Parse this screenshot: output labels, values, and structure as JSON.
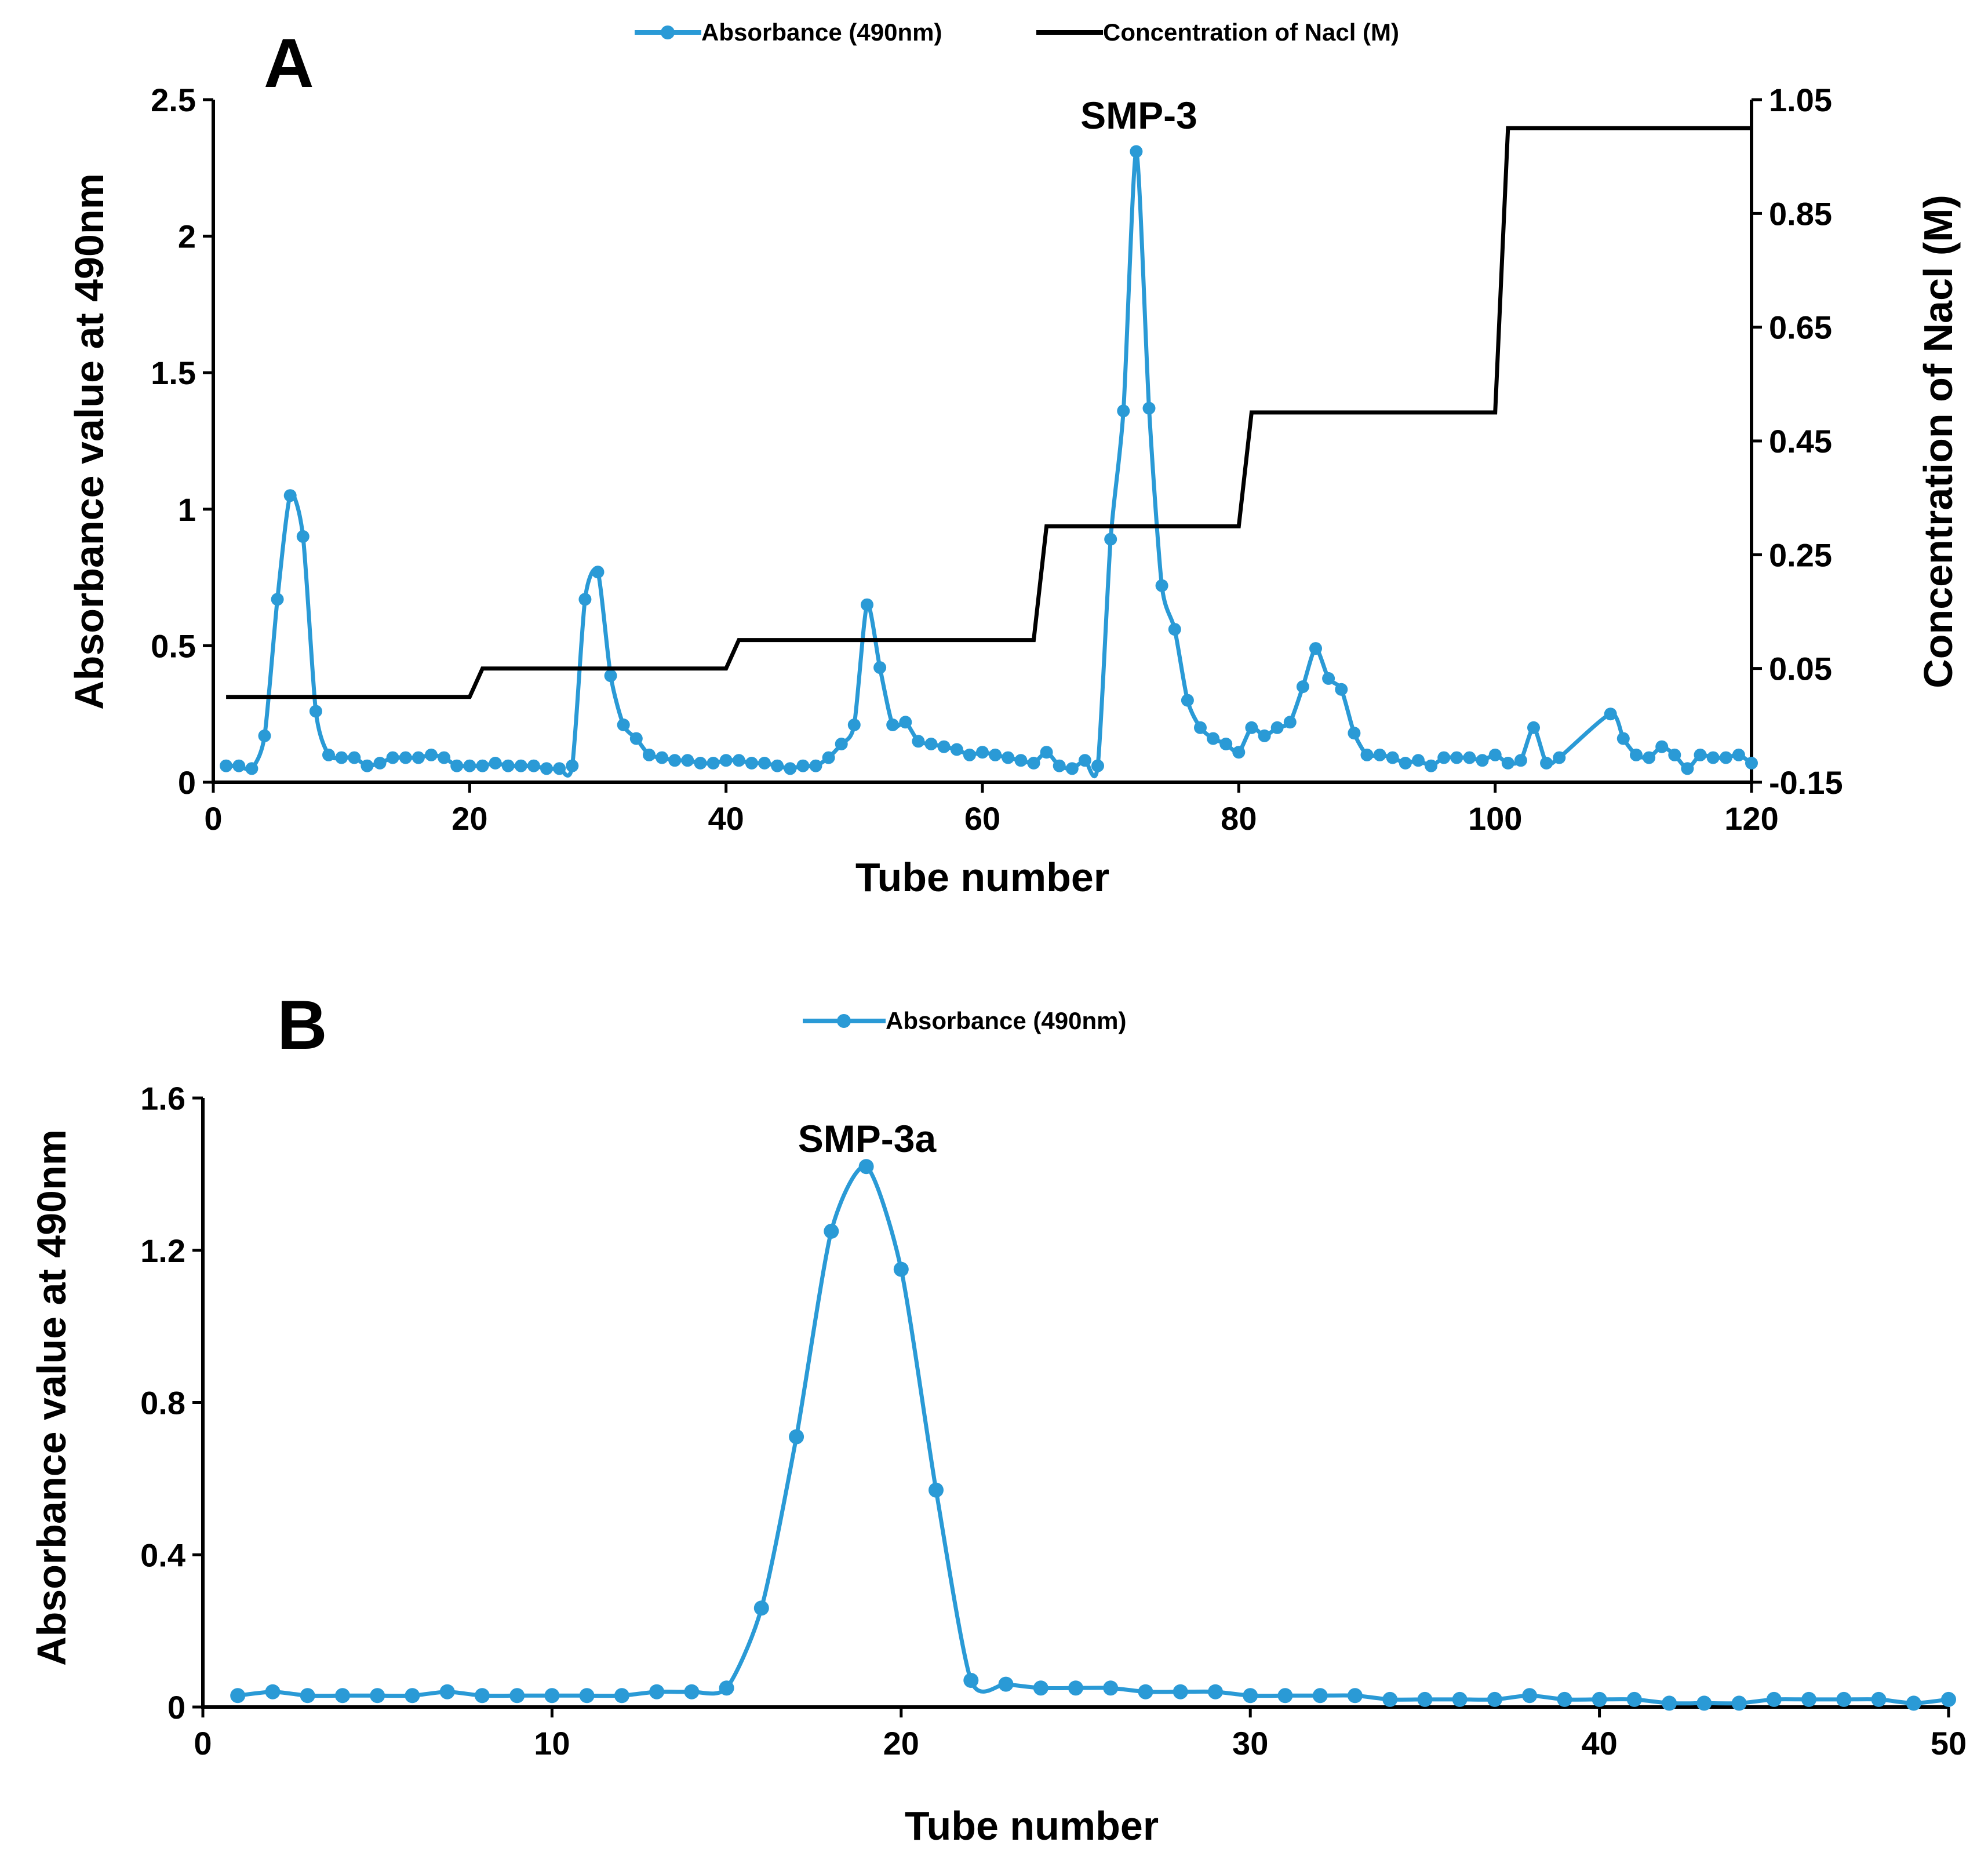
{
  "colors": {
    "absorbance": "#2a9ad6",
    "nacl": "#000000",
    "axis": "#000000"
  },
  "chart_data": [
    {
      "panel": "A",
      "type": "line",
      "xlabel": "Tube number",
      "ylabel": "Absorbance value at 490nm",
      "y2label": "Concentration of Nacl (M)",
      "xlim": [
        0,
        120
      ],
      "ylim": [
        0,
        2.5
      ],
      "y2lim": [
        -0.15,
        1.05
      ],
      "xticks": [
        "0",
        "20",
        "40",
        "60",
        "80",
        "100",
        "120"
      ],
      "yticks": [
        "0",
        "0.5",
        "1",
        "1.5",
        "2",
        "2.5"
      ],
      "y2ticks": [
        "-0.15",
        "0.05",
        "0.25",
        "0.45",
        "0.65",
        "0.85",
        "1.05"
      ],
      "legend": [
        "Absorbance (490nm)",
        "Concentration of Nacl (M)"
      ],
      "annotation": "SMP-3",
      "series": [
        {
          "name": "Absorbance (490nm)",
          "axis": "left",
          "marker": true,
          "x": [
            1,
            2,
            3,
            4,
            5,
            6,
            7,
            8,
            9,
            10,
            11,
            12,
            13,
            14,
            15,
            16,
            17,
            18,
            19,
            20,
            21,
            22,
            23,
            24,
            25,
            26,
            27,
            28,
            29,
            30,
            31,
            32,
            33,
            34,
            35,
            36,
            37,
            38,
            39,
            40,
            41,
            42,
            43,
            44,
            45,
            46,
            47,
            48,
            49,
            50,
            51,
            52,
            53,
            54,
            55,
            56,
            57,
            58,
            59,
            60,
            61,
            62,
            63,
            64,
            65,
            66,
            67,
            68,
            69,
            70,
            71,
            72,
            73,
            74,
            75,
            76,
            77,
            78,
            79,
            80,
            81,
            82,
            83,
            84,
            85,
            86,
            87,
            88,
            89,
            90,
            91,
            92,
            93,
            94,
            95,
            96,
            97,
            98,
            99,
            100,
            101,
            102,
            103,
            104,
            105,
            109,
            110,
            111,
            112,
            113,
            114,
            115,
            116,
            117,
            118,
            119,
            120
          ],
          "values": [
            0.06,
            0.06,
            0.05,
            0.17,
            0.67,
            1.05,
            0.9,
            0.26,
            0.1,
            0.09,
            0.09,
            0.06,
            0.07,
            0.09,
            0.09,
            0.09,
            0.1,
            0.09,
            0.06,
            0.06,
            0.06,
            0.07,
            0.06,
            0.06,
            0.06,
            0.05,
            0.05,
            0.06,
            0.67,
            0.77,
            0.39,
            0.21,
            0.16,
            0.1,
            0.09,
            0.08,
            0.08,
            0.07,
            0.07,
            0.08,
            0.08,
            0.07,
            0.07,
            0.06,
            0.05,
            0.06,
            0.06,
            0.09,
            0.14,
            0.21,
            0.65,
            0.42,
            0.21,
            0.22,
            0.15,
            0.14,
            0.13,
            0.12,
            0.1,
            0.11,
            0.1,
            0.09,
            0.08,
            0.07,
            0.11,
            0.06,
            0.05,
            0.08,
            0.06,
            0.89,
            1.36,
            2.31,
            1.37,
            0.72,
            0.56,
            0.3,
            0.2,
            0.16,
            0.14,
            0.11,
            0.2,
            0.17,
            0.2,
            0.22,
            0.35,
            0.49,
            0.38,
            0.34,
            0.18,
            0.1,
            0.1,
            0.09,
            0.07,
            0.08,
            0.06,
            0.09,
            0.09,
            0.09,
            0.08,
            0.1,
            0.07,
            0.08,
            0.2,
            0.07,
            0.09,
            0.25,
            0.16,
            0.1,
            0.09,
            0.13,
            0.1,
            0.05,
            0.1,
            0.09,
            0.09,
            0.1,
            0.07
          ]
        },
        {
          "name": "Concentration of Nacl (M)",
          "axis": "right",
          "marker": false,
          "x": [
            1,
            20,
            21,
            40,
            41,
            64,
            65,
            80,
            81,
            100,
            101,
            120
          ],
          "values": [
            0.0,
            0.0,
            0.05,
            0.05,
            0.1,
            0.1,
            0.3,
            0.3,
            0.5,
            0.5,
            1.0,
            1.0
          ]
        }
      ]
    },
    {
      "panel": "B",
      "type": "line",
      "xlabel": "Tube number",
      "ylabel": "Absorbance value at 490nm",
      "xlim": [
        0,
        50
      ],
      "ylim": [
        0,
        1.6
      ],
      "xticks": [
        "0",
        "10",
        "20",
        "30",
        "40",
        "50"
      ],
      "yticks": [
        "0",
        "0.4",
        "0.8",
        "1.2",
        "1.6"
      ],
      "legend": [
        "Absorbance (490nm)"
      ],
      "annotation": "SMP-3a",
      "series": [
        {
          "name": "Absorbance (490nm)",
          "axis": "left",
          "marker": true,
          "x": [
            1,
            2,
            3,
            4,
            5,
            6,
            7,
            8,
            9,
            10,
            11,
            12,
            13,
            14,
            15,
            16,
            17,
            18,
            19,
            20,
            21,
            22,
            23,
            24,
            25,
            26,
            27,
            28,
            29,
            30,
            31,
            32,
            33,
            34,
            35,
            36,
            37,
            38,
            39,
            40,
            41,
            42,
            43,
            44,
            45,
            46,
            47,
            48,
            49,
            50
          ],
          "values": [
            0.03,
            0.04,
            0.03,
            0.03,
            0.03,
            0.03,
            0.04,
            0.03,
            0.03,
            0.03,
            0.03,
            0.03,
            0.04,
            0.04,
            0.05,
            0.26,
            0.71,
            1.25,
            1.42,
            1.15,
            0.57,
            0.07,
            0.06,
            0.05,
            0.05,
            0.05,
            0.04,
            0.04,
            0.04,
            0.03,
            0.03,
            0.03,
            0.03,
            0.02,
            0.02,
            0.02,
            0.02,
            0.03,
            0.02,
            0.02,
            0.02,
            0.01,
            0.01,
            0.01,
            0.02,
            0.02,
            0.02,
            0.02,
            0.01,
            0.02
          ]
        }
      ]
    }
  ]
}
